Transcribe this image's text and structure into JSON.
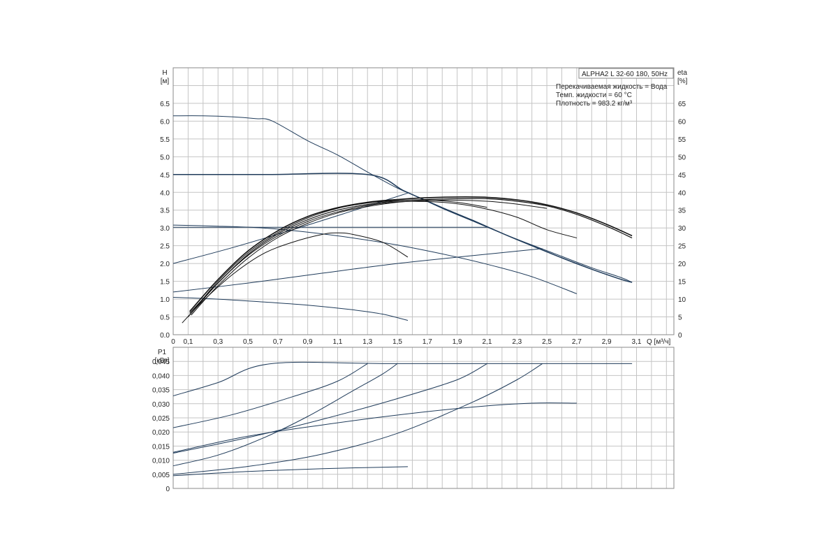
{
  "legend": {
    "title": "ALPHA2 L 32-60 180, 50Hz",
    "lines": [
      "Перекачиваемая жидкость = Вода",
      "Темп. жидкости = 60 °C",
      "Плотность = 983.2 кг/м³"
    ]
  },
  "chart_data": [
    {
      "type": "line",
      "id": "head-efficiency",
      "xlabel": "Q [м³/ч]",
      "ylabel_lines": [
        "H",
        "[м]"
      ],
      "y2label_lines": [
        "eta",
        "[%]"
      ],
      "xlim": [
        0,
        3.35
      ],
      "ylim": [
        0,
        7.5
      ],
      "y2lim": [
        0,
        75
      ],
      "x_ticks": [
        "0",
        "0,1",
        "0,3",
        "0,5",
        "0,7",
        "0,9",
        "1,1",
        "1,3",
        "1,5",
        "1,7",
        "1,9",
        "2,1",
        "2,3",
        "2,5",
        "2,7",
        "2,9",
        "3,1"
      ],
      "x_tick_values": [
        0,
        0.1,
        0.3,
        0.5,
        0.7,
        0.9,
        1.1,
        1.3,
        1.5,
        1.7,
        1.9,
        2.1,
        2.3,
        2.5,
        2.7,
        2.9,
        3.1
      ],
      "y_ticks": [
        "0.0",
        "0.5",
        "1.0",
        "1.5",
        "2.0",
        "2.5",
        "3.0",
        "3.5",
        "4.0",
        "4.5",
        "5.0",
        "5.5",
        "6.0",
        "6.5"
      ],
      "y2_ticks": [
        "0",
        "5",
        "10",
        "15",
        "20",
        "25",
        "30",
        "35",
        "40",
        "45",
        "50",
        "55",
        "60",
        "65"
      ],
      "grid": true,
      "series": [
        {
          "color": "#1f3b5a",
          "width": 1,
          "points": [
            [
              0,
              6.15
            ],
            [
              0.2,
              6.15
            ],
            [
              0.4,
              6.12
            ],
            [
              0.55,
              6.07
            ],
            [
              0.66,
              6.01
            ],
            [
              0.9,
              5.45
            ],
            [
              1.1,
              5.05
            ],
            [
              1.3,
              4.57
            ],
            [
              1.5,
              4.12
            ],
            [
              1.62,
              3.9
            ],
            [
              1.8,
              3.55
            ],
            [
              2.0,
              3.2
            ],
            [
              2.2,
              2.85
            ],
            [
              2.4,
              2.52
            ],
            [
              2.6,
              2.2
            ],
            [
              2.8,
              1.88
            ],
            [
              3.0,
              1.6
            ],
            [
              3.07,
              1.47
            ]
          ]
        },
        {
          "color": "#1f3b5a",
          "width": 1.5,
          "points": [
            [
              0,
              4.5
            ],
            [
              0.6,
              4.5
            ],
            [
              1.3,
              4.5
            ],
            [
              1.55,
              4.03
            ],
            [
              1.8,
              3.57
            ],
            [
              2.0,
              3.22
            ],
            [
              2.2,
              2.85
            ],
            [
              2.4,
              2.5
            ],
            [
              2.6,
              2.16
            ],
            [
              2.8,
              1.84
            ],
            [
              3.0,
              1.55
            ],
            [
              3.07,
              1.47
            ]
          ]
        },
        {
          "color": "#1f3b5a",
          "width": 1,
          "points": [
            [
              0,
              3.02
            ],
            [
              0.6,
              3.02
            ],
            [
              1.2,
              3.02
            ],
            [
              2.1,
              3.02
            ]
          ]
        },
        {
          "color": "#1f3b5a",
          "width": 1,
          "points": [
            [
              0,
              3.08
            ],
            [
              0.3,
              3.05
            ],
            [
              0.6,
              3.0
            ],
            [
              0.9,
              2.88
            ],
            [
              1.2,
              2.72
            ],
            [
              1.5,
              2.52
            ],
            [
              1.8,
              2.27
            ],
            [
              2.1,
              1.98
            ],
            [
              2.4,
              1.63
            ],
            [
              2.7,
              1.15
            ]
          ]
        },
        {
          "color": "#1f3b5a",
          "width": 1,
          "points": [
            [
              0,
              1.05
            ],
            [
              0.3,
              1.0
            ],
            [
              0.6,
              0.92
            ],
            [
              0.9,
              0.83
            ],
            [
              1.2,
              0.7
            ],
            [
              1.4,
              0.58
            ],
            [
              1.57,
              0.4
            ]
          ]
        },
        {
          "color": "#1f3b5a",
          "width": 1,
          "points": [
            [
              0,
              2.0
            ],
            [
              0.4,
              2.45
            ],
            [
              0.8,
              2.95
            ],
            [
              1.2,
              3.48
            ],
            [
              1.57,
              3.98
            ]
          ]
        },
        {
          "color": "#1f3b5a",
          "width": 1,
          "points": [
            [
              0,
              1.2
            ],
            [
              0.5,
              1.45
            ],
            [
              1.0,
              1.73
            ],
            [
              1.5,
              2.0
            ],
            [
              2.0,
              2.22
            ],
            [
              2.47,
              2.42
            ]
          ]
        },
        {
          "color": "#111111",
          "width": 1,
          "points": [
            [
              0.06,
              0.33
            ],
            [
              0.2,
              0.95
            ],
            [
              0.4,
              1.7
            ],
            [
              0.6,
              2.27
            ],
            [
              0.8,
              2.6
            ],
            [
              1.0,
              2.82
            ],
            [
              1.1,
              2.86
            ],
            [
              1.2,
              2.82
            ],
            [
              1.4,
              2.6
            ],
            [
              1.57,
              2.18
            ]
          ]
        },
        {
          "color": "#111111",
          "width": 1,
          "points": [
            [
              0.1,
              0.5
            ],
            [
              0.3,
              1.45
            ],
            [
              0.5,
              2.22
            ],
            [
              0.7,
              2.78
            ],
            [
              0.9,
              3.18
            ],
            [
              1.1,
              3.45
            ],
            [
              1.3,
              3.63
            ],
            [
              1.5,
              3.73
            ],
            [
              1.7,
              3.74
            ],
            [
              1.9,
              3.68
            ],
            [
              2.1,
              3.53
            ],
            [
              2.3,
              3.3
            ],
            [
              2.5,
              2.95
            ],
            [
              2.7,
              2.72
            ]
          ]
        },
        {
          "color": "#111111",
          "width": 1,
          "points": [
            [
              0.12,
              0.55
            ],
            [
              0.3,
              1.38
            ],
            [
              0.5,
              2.15
            ],
            [
              0.7,
              2.73
            ],
            [
              0.9,
              3.13
            ],
            [
              1.1,
              3.42
            ],
            [
              1.3,
              3.6
            ],
            [
              1.5,
              3.72
            ],
            [
              1.7,
              3.77
            ],
            [
              1.9,
              3.78
            ],
            [
              2.1,
              3.75
            ],
            [
              2.3,
              3.67
            ],
            [
              2.5,
              3.55
            ]
          ]
        },
        {
          "color": "#111111",
          "width": 1.2,
          "points": [
            [
              0.11,
              0.6
            ],
            [
              0.3,
              1.45
            ],
            [
              0.5,
              2.25
            ],
            [
              0.7,
              2.83
            ],
            [
              0.9,
              3.23
            ],
            [
              1.1,
              3.5
            ],
            [
              1.3,
              3.66
            ],
            [
              1.5,
              3.76
            ],
            [
              1.7,
              3.8
            ],
            [
              1.9,
              3.82
            ],
            [
              2.1,
              3.82
            ],
            [
              2.3,
              3.75
            ],
            [
              2.5,
              3.62
            ],
            [
              2.7,
              3.38
            ],
            [
              2.9,
              3.05
            ],
            [
              3.07,
              2.72
            ]
          ]
        },
        {
          "color": "#111111",
          "width": 1.6,
          "points": [
            [
              0.11,
              0.65
            ],
            [
              0.3,
              1.55
            ],
            [
              0.5,
              2.35
            ],
            [
              0.7,
              2.92
            ],
            [
              0.9,
              3.32
            ],
            [
              1.1,
              3.57
            ],
            [
              1.3,
              3.72
            ],
            [
              1.5,
              3.8
            ],
            [
              1.7,
              3.85
            ],
            [
              1.9,
              3.87
            ],
            [
              2.1,
              3.86
            ],
            [
              2.3,
              3.79
            ],
            [
              2.5,
              3.65
            ],
            [
              2.7,
              3.42
            ],
            [
              2.9,
              3.1
            ],
            [
              3.07,
              2.78
            ]
          ]
        },
        {
          "color": "#111111",
          "width": 1,
          "points": [
            [
              0.12,
              0.6
            ],
            [
              0.3,
              1.5
            ],
            [
              0.5,
              2.3
            ],
            [
              0.7,
              2.87
            ],
            [
              0.9,
              3.28
            ],
            [
              1.1,
              3.55
            ],
            [
              1.3,
              3.7
            ],
            [
              1.5,
              3.77
            ],
            [
              1.7,
              3.78
            ],
            [
              1.9,
              3.72
            ],
            [
              2.1,
              3.58
            ]
          ]
        }
      ]
    },
    {
      "type": "line",
      "id": "power",
      "ylabel_lines": [
        "P1",
        "[кВт]"
      ],
      "xlim": [
        0,
        3.35
      ],
      "ylim": [
        0,
        0.05
      ],
      "y_ticks": [
        "0",
        "0,005",
        "0,010",
        "0,015",
        "0,020",
        "0,025",
        "0,030",
        "0,035",
        "0,040",
        "0,045"
      ],
      "grid": true,
      "series": [
        {
          "color": "#1f3b5a",
          "width": 1,
          "points": [
            [
              0,
              0.0328
            ],
            [
              0.3,
              0.0375
            ],
            [
              0.66,
              0.0442
            ],
            [
              1.5,
              0.0442
            ],
            [
              3.07,
              0.0442
            ]
          ]
        },
        {
          "color": "#1f3b5a",
          "width": 1,
          "points": [
            [
              0,
              0.0215
            ],
            [
              0.4,
              0.0262
            ],
            [
              0.8,
              0.0325
            ],
            [
              1.1,
              0.038
            ],
            [
              1.3,
              0.0442
            ]
          ]
        },
        {
          "color": "#1f3b5a",
          "width": 1,
          "points": [
            [
              0,
              0.008
            ],
            [
              0.3,
              0.0118
            ],
            [
              0.6,
              0.0178
            ],
            [
              0.9,
              0.0255
            ],
            [
              1.2,
              0.0345
            ],
            [
              1.4,
              0.0405
            ],
            [
              1.5,
              0.0442
            ]
          ]
        },
        {
          "color": "#1f3b5a",
          "width": 1,
          "points": [
            [
              0,
              0.0125
            ],
            [
              0.5,
              0.018
            ],
            [
              1.0,
              0.0245
            ],
            [
              1.5,
              0.0318
            ],
            [
              1.9,
              0.0385
            ],
            [
              2.1,
              0.0442
            ]
          ]
        },
        {
          "color": "#1f3b5a",
          "width": 1,
          "points": [
            [
              0,
              0.005
            ],
            [
              0.5,
              0.0078
            ],
            [
              1.0,
              0.0122
            ],
            [
              1.5,
              0.0195
            ],
            [
              2.0,
              0.0305
            ],
            [
              2.3,
              0.0385
            ],
            [
              2.47,
              0.0442
            ]
          ]
        },
        {
          "color": "#1f3b5a",
          "width": 1,
          "points": [
            [
              0,
              0.0128
            ],
            [
              0.5,
              0.0185
            ],
            [
              1.0,
              0.0225
            ],
            [
              1.5,
              0.026
            ],
            [
              2.0,
              0.0288
            ],
            [
              2.4,
              0.0302
            ],
            [
              2.7,
              0.0302
            ]
          ]
        },
        {
          "color": "#1f3b5a",
          "width": 1,
          "points": [
            [
              0,
              0.0045
            ],
            [
              0.5,
              0.006
            ],
            [
              1.0,
              0.007
            ],
            [
              1.57,
              0.0077
            ]
          ]
        }
      ]
    }
  ]
}
